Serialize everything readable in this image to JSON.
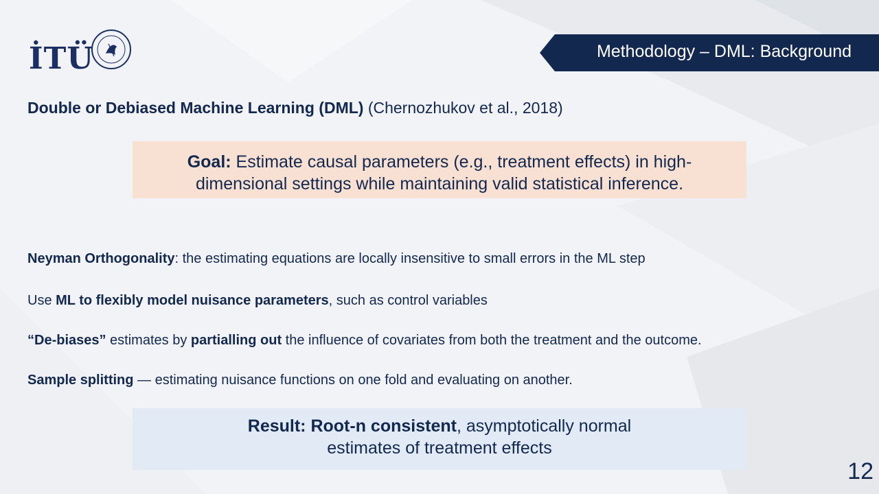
{
  "logo": {
    "text": "İTÜ",
    "seal_text": "İSTANBUL TEKNİK ÜNİVERSİTESİ 1773"
  },
  "header": {
    "title": "Methodology – DML: Background"
  },
  "heading": {
    "bold": "Double or Debiased Machine Learning (DML)",
    "citation": " (Chernozhukov et al., 2018)"
  },
  "goal": {
    "label": "Goal:",
    "line1": " Estimate causal parameters (e.g., treatment effects) in high-",
    "line2": "dimensional settings while maintaining valid statistical inference."
  },
  "bullets": {
    "b1": {
      "bold": "Neyman Orthogonality",
      "text": ": the estimating equations are locally insensitive to small errors in the ML step"
    },
    "b2": {
      "pre": "Use ",
      "bold": "ML to flexibly model nuisance parameters",
      "text": ", such as control variables"
    },
    "b3": {
      "bold1": "“De-biases”",
      "mid": " estimates by ",
      "bold2": "partialling out",
      "text": " the influence of covariates from both the treatment and the outcome."
    },
    "b4": {
      "bold": "Sample splitting",
      "text": " — estimating nuisance functions on one fold and evaluating on another."
    }
  },
  "result": {
    "label": "Result: Root-n consistent",
    "line1_rest": ", asymptotically normal",
    "line2": "estimates of treatment effects"
  },
  "page_number": "12",
  "colors": {
    "navy": "#13284f",
    "goal_bg": "#f8e1d3",
    "result_bg": "#e1eaf5"
  }
}
